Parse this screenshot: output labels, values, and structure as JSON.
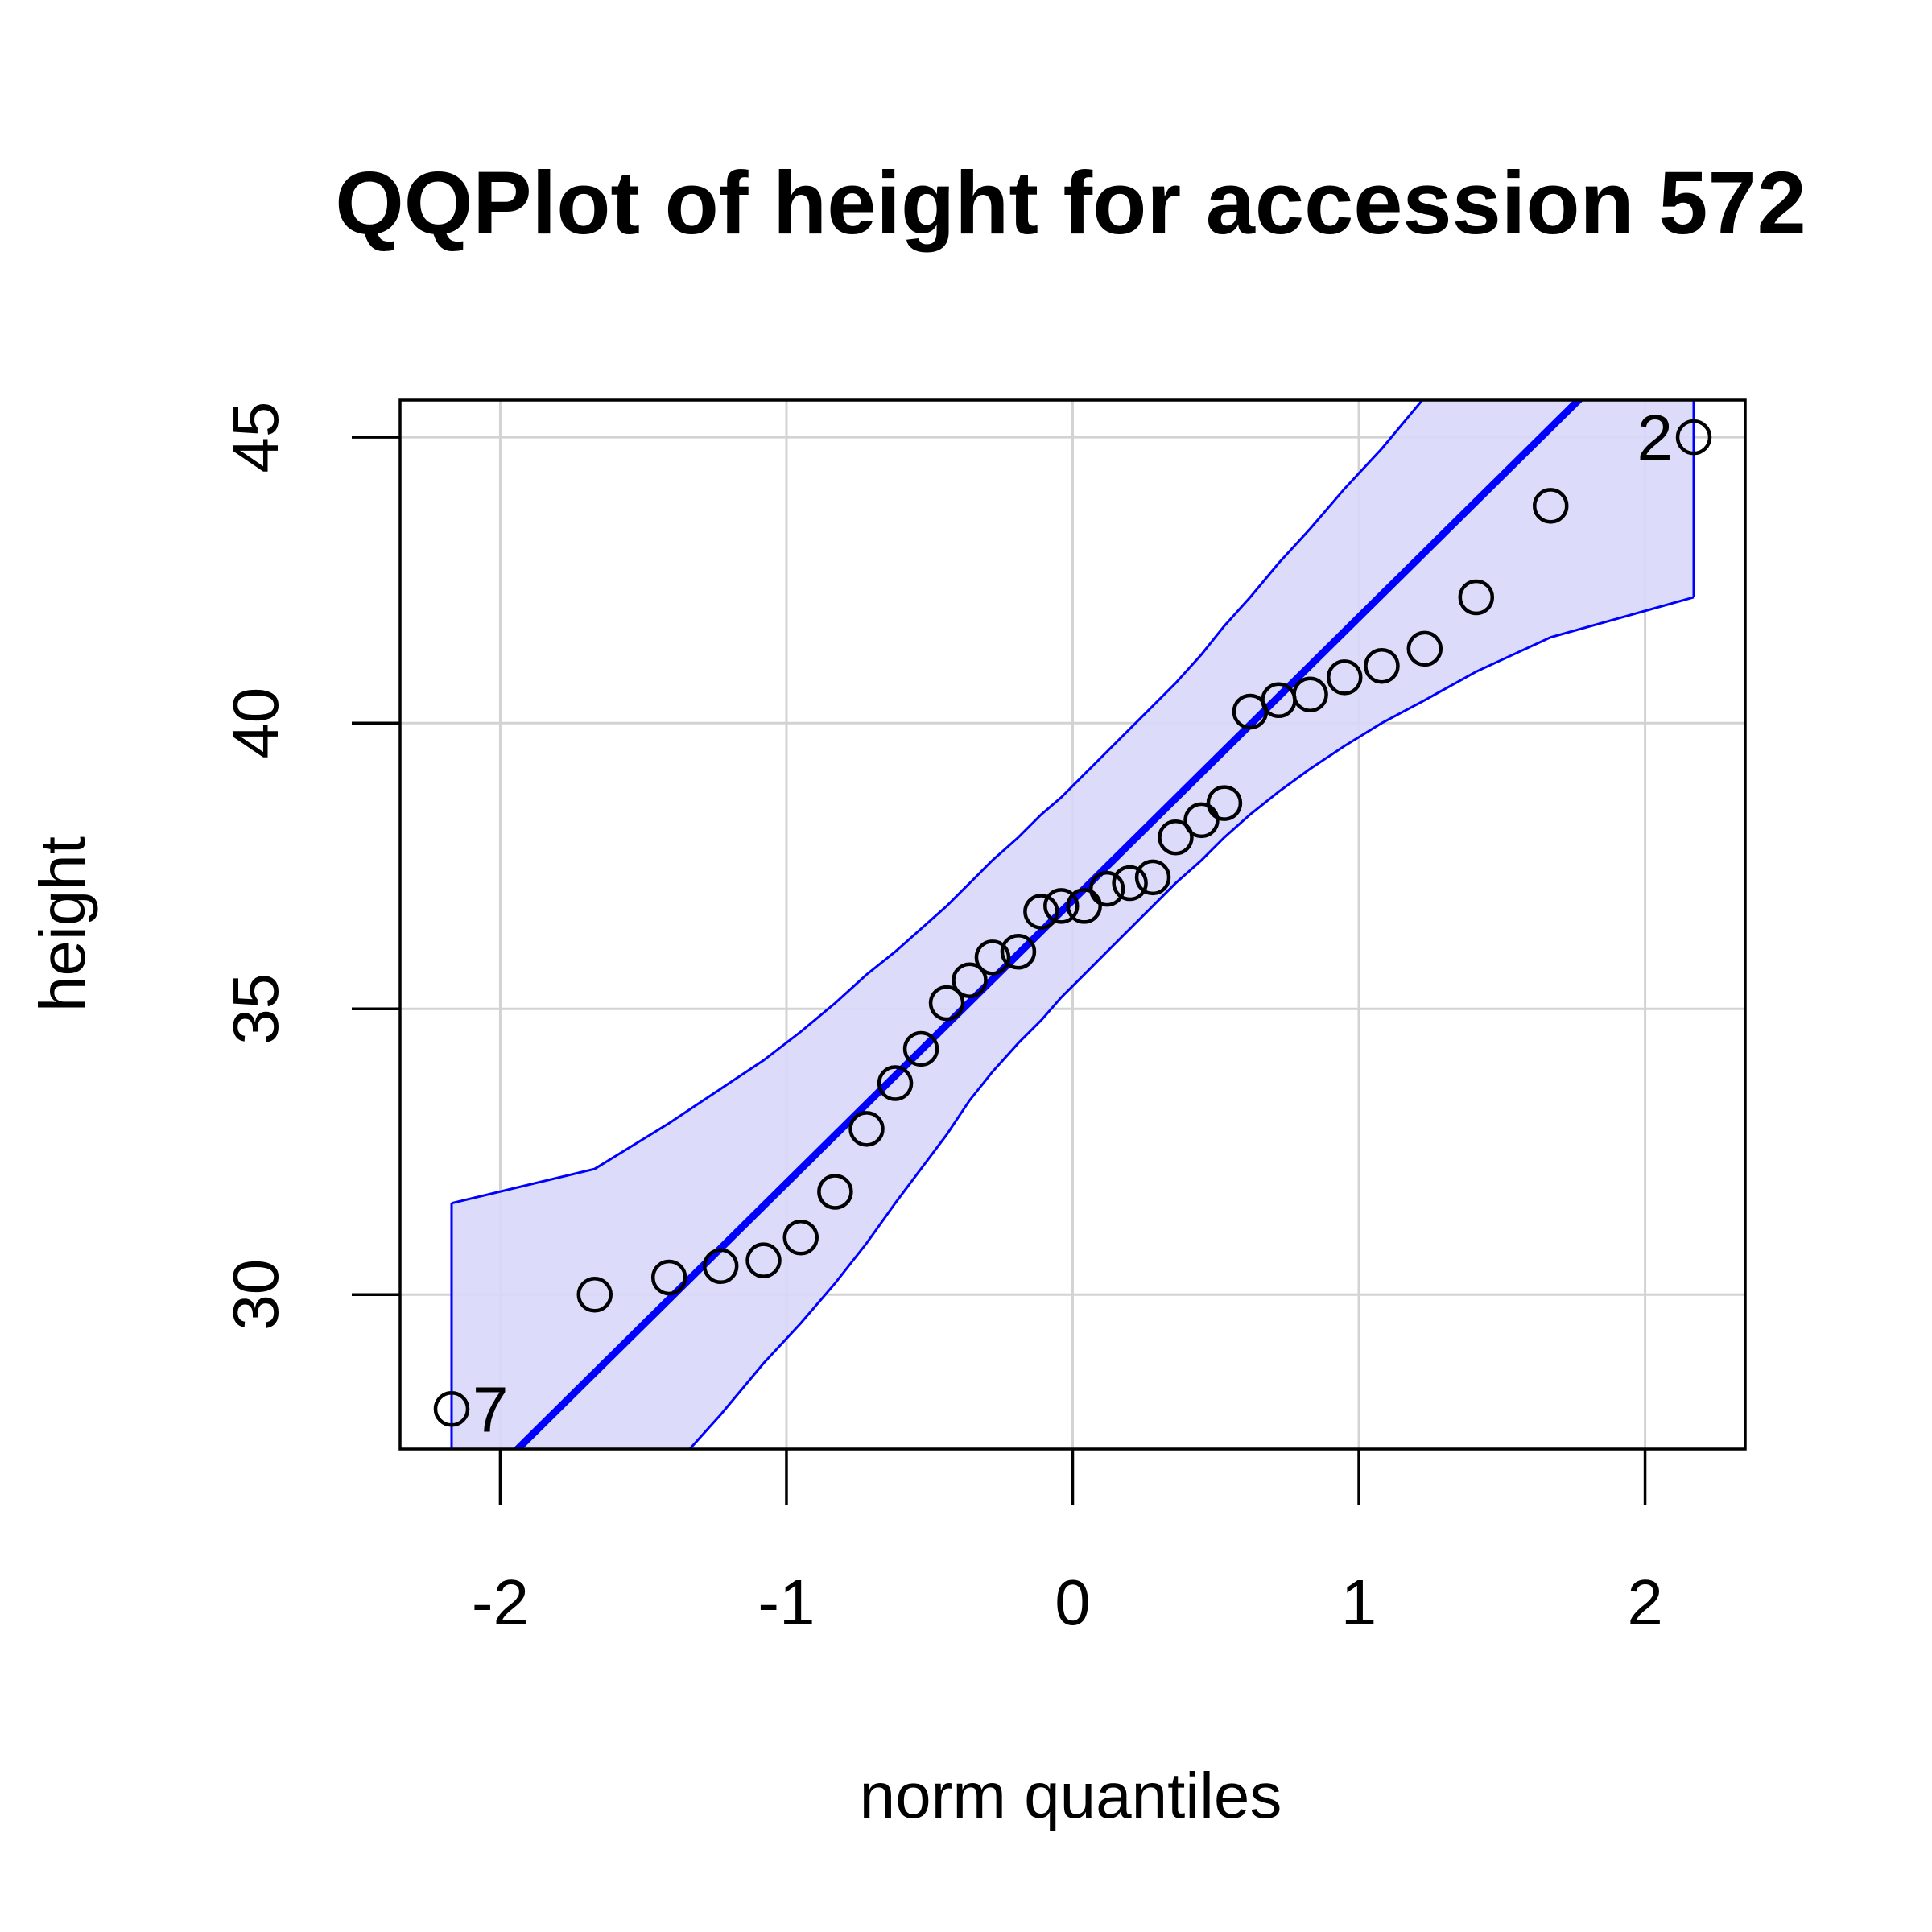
{
  "chart_data": {
    "type": "scatter",
    "title": "QQPlot of height for accession 572",
    "xlabel": "norm quantiles",
    "ylabel": "height",
    "xlim": [
      -2.35,
      2.35
    ],
    "ylim": [
      27.3,
      45.65
    ],
    "x_ticks": [
      -2,
      -1,
      0,
      1,
      2
    ],
    "y_ticks": [
      30,
      35,
      40,
      45
    ],
    "x_tick_labels": [
      "-2",
      "-1",
      "0",
      "1",
      "2"
    ],
    "y_tick_labels": [
      "30",
      "35",
      "40",
      "45"
    ],
    "grid": true,
    "colors": {
      "points": "#000000",
      "line": "#0000ff",
      "band_fill": "#d8d8fa",
      "band_edge": "#0000ff",
      "grid": "#d3d3d3"
    },
    "points": [
      {
        "x": -2.17,
        "y": 28.0
      },
      {
        "x": -1.67,
        "y": 30.0
      },
      {
        "x": -1.41,
        "y": 30.3
      },
      {
        "x": -1.23,
        "y": 30.5
      },
      {
        "x": -1.08,
        "y": 30.6
      },
      {
        "x": -0.95,
        "y": 31.0
      },
      {
        "x": -0.83,
        "y": 31.8
      },
      {
        "x": -0.72,
        "y": 32.9
      },
      {
        "x": -0.62,
        "y": 33.7
      },
      {
        "x": -0.53,
        "y": 34.3
      },
      {
        "x": -0.44,
        "y": 35.1
      },
      {
        "x": -0.36,
        "y": 35.5
      },
      {
        "x": -0.28,
        "y": 35.9
      },
      {
        "x": -0.19,
        "y": 36.0
      },
      {
        "x": -0.11,
        "y": 36.7
      },
      {
        "x": -0.04,
        "y": 36.8
      },
      {
        "x": 0.04,
        "y": 36.8
      },
      {
        "x": 0.12,
        "y": 37.1
      },
      {
        "x": 0.2,
        "y": 37.2
      },
      {
        "x": 0.28,
        "y": 37.3
      },
      {
        "x": 0.36,
        "y": 38.0
      },
      {
        "x": 0.45,
        "y": 38.3
      },
      {
        "x": 0.53,
        "y": 38.6
      },
      {
        "x": 0.62,
        "y": 40.2
      },
      {
        "x": 0.72,
        "y": 40.4
      },
      {
        "x": 0.83,
        "y": 40.5
      },
      {
        "x": 0.95,
        "y": 40.8
      },
      {
        "x": 1.08,
        "y": 41.0
      },
      {
        "x": 1.23,
        "y": 41.3
      },
      {
        "x": 1.41,
        "y": 42.2
      },
      {
        "x": 1.67,
        "y": 43.8
      },
      {
        "x": 2.17,
        "y": 45.0
      }
    ],
    "point_labels": [
      {
        "text": "7",
        "x": -2.17,
        "y": 28.0
      },
      {
        "text": "2",
        "x": 2.17,
        "y": 45.0
      }
    ],
    "reference_line": {
      "intercept": 36.9,
      "slope": 4.95
    },
    "band": {
      "x": [
        -2.17,
        -1.67,
        -1.41,
        -1.23,
        -1.08,
        -0.95,
        -0.83,
        -0.72,
        -0.62,
        -0.53,
        -0.44,
        -0.36,
        -0.28,
        -0.19,
        -0.11,
        -0.04,
        0.04,
        0.12,
        0.2,
        0.28,
        0.36,
        0.45,
        0.53,
        0.62,
        0.72,
        0.83,
        0.95,
        1.08,
        1.23,
        1.41,
        1.67,
        2.17
      ],
      "upper": [
        31.6,
        32.2,
        33.0,
        33.6,
        34.1,
        34.6,
        35.1,
        35.6,
        36.0,
        36.4,
        36.8,
        37.2,
        37.6,
        38.0,
        38.4,
        38.7,
        39.1,
        39.5,
        39.9,
        40.3,
        40.7,
        41.2,
        41.7,
        42.2,
        42.8,
        43.4,
        44.1,
        44.8,
        45.7,
        46.8,
        48.5,
        51.8
      ],
      "lower": [
        22.0,
        25.3,
        26.9,
        27.9,
        28.8,
        29.5,
        30.2,
        30.9,
        31.6,
        32.2,
        32.8,
        33.4,
        33.9,
        34.4,
        34.8,
        35.2,
        35.6,
        36.0,
        36.4,
        36.8,
        37.2,
        37.6,
        38.0,
        38.4,
        38.8,
        39.2,
        39.6,
        40.0,
        40.4,
        40.9,
        41.5,
        42.2
      ]
    }
  }
}
